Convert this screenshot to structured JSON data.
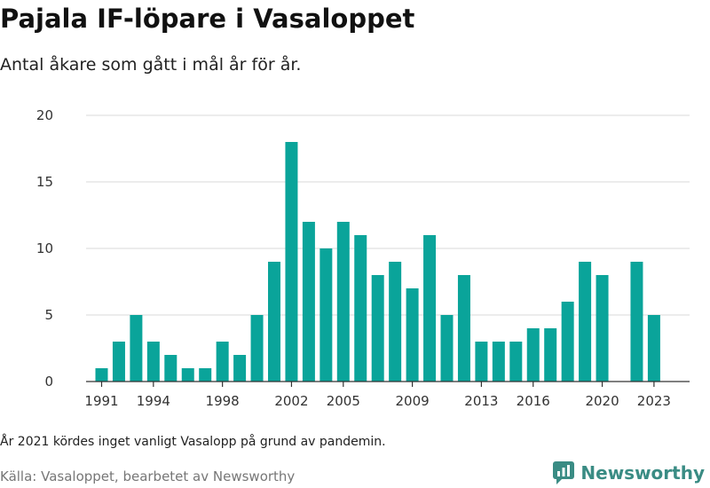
{
  "header": {
    "title": "Pajala IF-löpare i Vasaloppet",
    "subtitle": "Antal åkare som gått i mål år för år."
  },
  "footer": {
    "note": "År 2021 kördes inget vanligt Vasalopp på grund av pandemin.",
    "source": "Källa: Vasaloppet, bearbetet av Newsworthy",
    "logo_text": "Newsworthy"
  },
  "colors": {
    "bar": "#0aa49a",
    "logo": "#3a8c84"
  },
  "chart_data": {
    "type": "bar",
    "title": "Pajala IF-löpare i Vasaloppet",
    "subtitle": "Antal åkare som gått i mål år för år.",
    "xlabel": "",
    "ylabel": "",
    "x": [
      1991,
      1992,
      1993,
      1994,
      1995,
      1996,
      1997,
      1998,
      1999,
      2000,
      2001,
      2002,
      2003,
      2004,
      2005,
      2006,
      2007,
      2008,
      2009,
      2010,
      2011,
      2012,
      2013,
      2014,
      2015,
      2016,
      2017,
      2018,
      2019,
      2020,
      2021,
      2022,
      2023
    ],
    "values": [
      1,
      3,
      5,
      3,
      2,
      1,
      1,
      3,
      2,
      5,
      9,
      18,
      12,
      10,
      12,
      11,
      8,
      9,
      7,
      11,
      5,
      8,
      3,
      3,
      3,
      4,
      4,
      6,
      9,
      8,
      0,
      9,
      5
    ],
    "x_tick_labels": [
      1991,
      1994,
      1998,
      2002,
      2005,
      2009,
      2013,
      2016,
      2020,
      2023
    ],
    "y_ticks": [
      0,
      5,
      10,
      15,
      20
    ],
    "ylim": [
      0,
      20
    ],
    "grid": true,
    "legend": "none"
  }
}
